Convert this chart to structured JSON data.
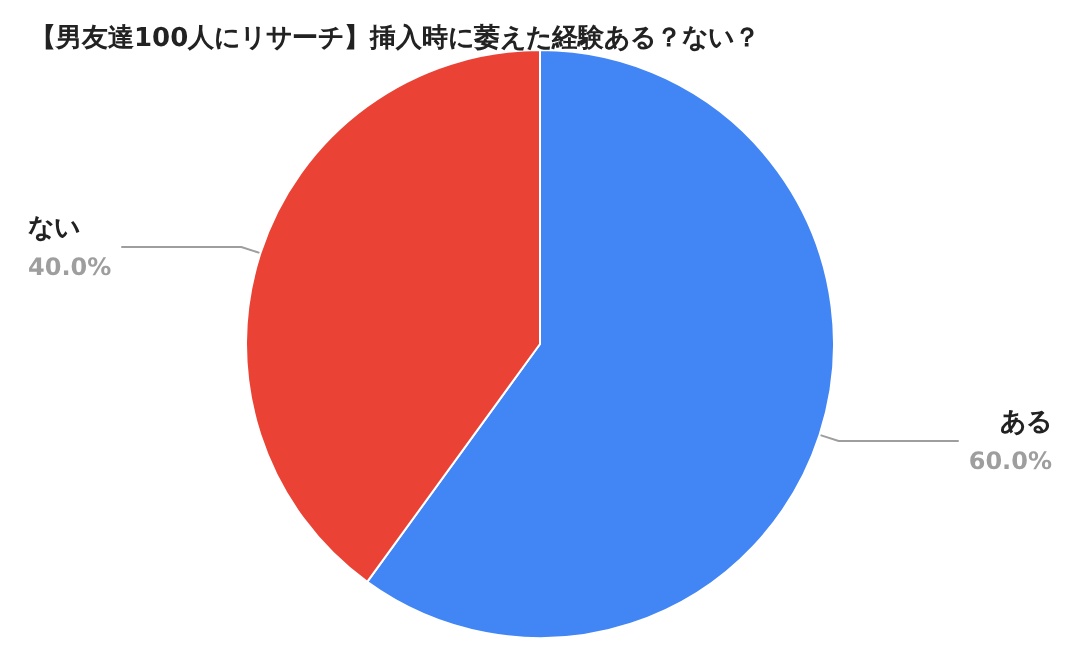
{
  "chart_data": {
    "type": "pie",
    "title": "【男友達100人にリサーチ】挿入時に萎えた経験ある？ない？",
    "categories": [
      "ある",
      "ない"
    ],
    "values": [
      60,
      40
    ],
    "colors": [
      "#4285f4",
      "#ea4335"
    ],
    "value_labels": [
      "60.0%",
      "40.0%"
    ],
    "legend": false
  }
}
